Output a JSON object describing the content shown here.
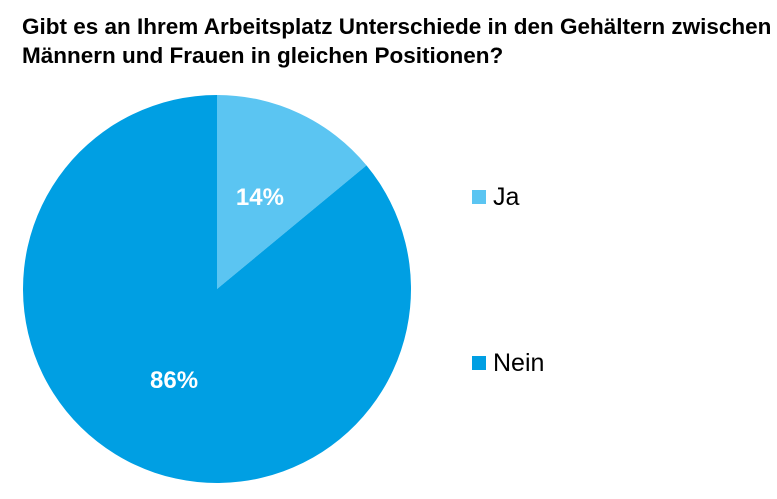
{
  "chart_data": {
    "type": "pie",
    "title": "Gibt es an Ihrem Arbeitsplatz Unterschiede in den Gehältern zwischen Männern und Frauen in gleichen Positionen?",
    "slices": [
      {
        "label": "Ja",
        "value": 14,
        "display": "14%",
        "color": "#5BC5F2"
      },
      {
        "label": "Nein",
        "value": 86,
        "display": "86%",
        "color": "#009FE3"
      }
    ],
    "start": "12 o'clock",
    "direction": "clockwise",
    "legend_position": "right"
  }
}
